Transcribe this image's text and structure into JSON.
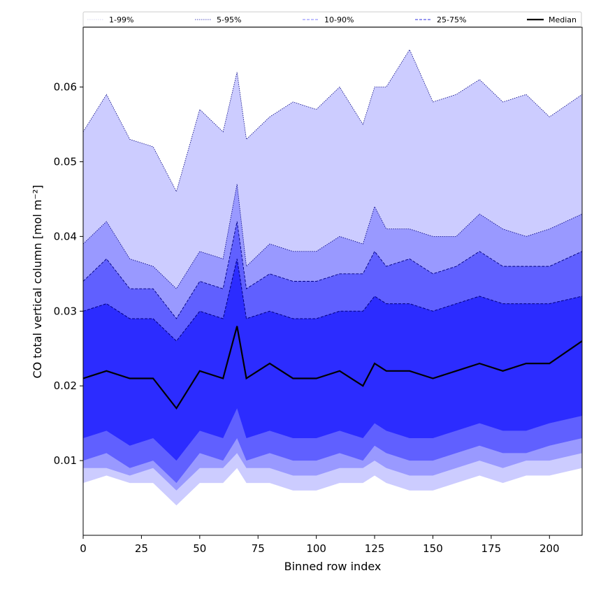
{
  "chart_data": {
    "type": "area",
    "xlabel": "Binned row index",
    "ylabel": "CO total vertical column [mol m⁻²]",
    "xlim": [
      0,
      214
    ],
    "ylim": [
      0.0,
      0.068
    ],
    "x_ticks": [
      0,
      25,
      50,
      75,
      100,
      125,
      150,
      175,
      200
    ],
    "y_ticks": [
      0.01,
      0.02,
      0.03,
      0.04,
      0.05,
      0.06
    ],
    "x_tick_labels": [
      "0",
      "25",
      "50",
      "75",
      "100",
      "125",
      "150",
      "175",
      "200"
    ],
    "y_tick_labels": [
      "0.01",
      "0.02",
      "0.03",
      "0.04",
      "0.05",
      "0.06"
    ],
    "legend": {
      "placement": "top",
      "entries": [
        {
          "label": "1-99%",
          "style": "dotted",
          "color": "#d8d8f0"
        },
        {
          "label": "5-95%",
          "style": "dotted",
          "color": "#5050c0"
        },
        {
          "label": "10-90%",
          "style": "dashed",
          "color": "#8080ff"
        },
        {
          "label": "25-75%",
          "style": "dashed",
          "color": "#3030e0"
        },
        {
          "label": "Median",
          "style": "solid",
          "color": "#000000"
        }
      ]
    },
    "colors": {
      "band_1_99": "#ccccff",
      "band_5_95": "#9999ff",
      "band_10_90": "#6060ff",
      "band_25_75": "#2c2cff",
      "median": "#000000"
    },
    "series_description": "Percentile envelopes (1, 5, 10, 25, 50, 75, 90, 95, 99) of CO total vertical column per binned row index 0-214",
    "x": [
      0,
      10,
      20,
      30,
      40,
      50,
      60,
      66,
      70,
      80,
      90,
      100,
      110,
      120,
      125,
      130,
      140,
      150,
      160,
      170,
      180,
      190,
      200,
      214
    ],
    "p99": [
      0.054,
      0.059,
      0.053,
      0.052,
      0.046,
      0.057,
      0.054,
      0.062,
      0.053,
      0.056,
      0.058,
      0.057,
      0.06,
      0.055,
      0.06,
      0.06,
      0.065,
      0.058,
      0.059,
      0.061,
      0.058,
      0.059,
      0.056,
      0.059
    ],
    "p95": [
      0.039,
      0.042,
      0.037,
      0.036,
      0.033,
      0.038,
      0.037,
      0.047,
      0.036,
      0.039,
      0.038,
      0.038,
      0.04,
      0.039,
      0.044,
      0.041,
      0.041,
      0.04,
      0.04,
      0.043,
      0.041,
      0.04,
      0.041,
      0.043
    ],
    "p90": [
      0.034,
      0.037,
      0.033,
      0.033,
      0.029,
      0.034,
      0.033,
      0.042,
      0.033,
      0.035,
      0.034,
      0.034,
      0.035,
      0.035,
      0.038,
      0.036,
      0.037,
      0.035,
      0.036,
      0.038,
      0.036,
      0.036,
      0.036,
      0.038
    ],
    "p75": [
      0.03,
      0.031,
      0.029,
      0.029,
      0.026,
      0.03,
      0.029,
      0.037,
      0.029,
      0.03,
      0.029,
      0.029,
      0.03,
      0.03,
      0.032,
      0.031,
      0.031,
      0.03,
      0.031,
      0.032,
      0.031,
      0.031,
      0.031,
      0.032
    ],
    "median": [
      0.021,
      0.022,
      0.021,
      0.021,
      0.017,
      0.022,
      0.021,
      0.028,
      0.021,
      0.023,
      0.021,
      0.021,
      0.022,
      0.02,
      0.023,
      0.022,
      0.022,
      0.021,
      0.022,
      0.023,
      0.022,
      0.023,
      0.023,
      0.026
    ],
    "p25": [
      0.013,
      0.014,
      0.012,
      0.013,
      0.01,
      0.014,
      0.013,
      0.017,
      0.013,
      0.014,
      0.013,
      0.013,
      0.014,
      0.013,
      0.015,
      0.014,
      0.013,
      0.013,
      0.014,
      0.015,
      0.014,
      0.014,
      0.015,
      0.016
    ],
    "p10": [
      0.01,
      0.011,
      0.009,
      0.01,
      0.007,
      0.011,
      0.01,
      0.013,
      0.01,
      0.011,
      0.01,
      0.01,
      0.011,
      0.01,
      0.012,
      0.011,
      0.01,
      0.01,
      0.011,
      0.012,
      0.011,
      0.011,
      0.012,
      0.013
    ],
    "p5": [
      0.009,
      0.009,
      0.008,
      0.009,
      0.006,
      0.009,
      0.009,
      0.011,
      0.009,
      0.009,
      0.008,
      0.008,
      0.009,
      0.009,
      0.01,
      0.009,
      0.008,
      0.008,
      0.009,
      0.01,
      0.009,
      0.01,
      0.01,
      0.011
    ],
    "p1": [
      0.007,
      0.008,
      0.007,
      0.007,
      0.004,
      0.007,
      0.007,
      0.009,
      0.007,
      0.007,
      0.006,
      0.006,
      0.007,
      0.007,
      0.008,
      0.007,
      0.006,
      0.006,
      0.007,
      0.008,
      0.007,
      0.008,
      0.008,
      0.009
    ]
  }
}
